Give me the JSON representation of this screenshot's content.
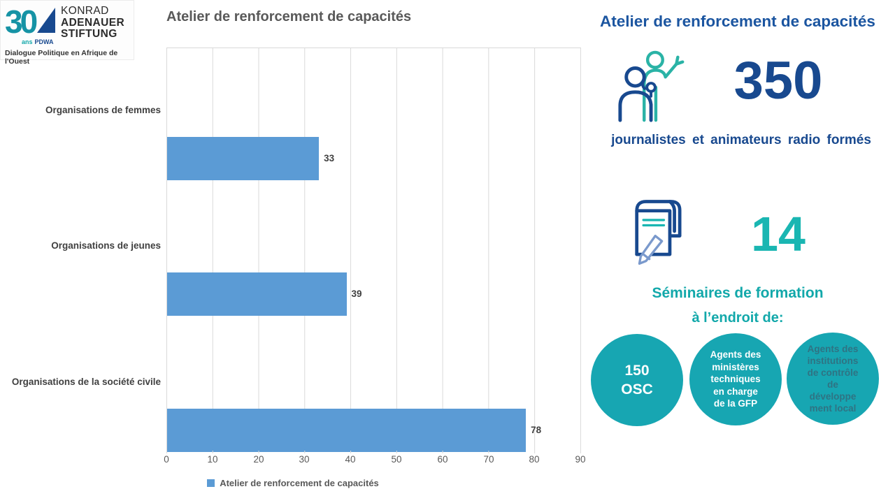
{
  "colors": {
    "navy": "#18498F",
    "navy-bright": "#1B55A0",
    "teal": "#12A8AA",
    "teal-num": "#1AB6B2",
    "teal-icon": "#2AB3A6",
    "circle-fill": "#17A6B2",
    "circle3-text": "#2F7383",
    "bar-blue": "#5B9BD5",
    "grid": "#D9D9D9",
    "title-gray": "#595959",
    "label-gray": "#404040",
    "logo-teal": "#1693A5",
    "pencil-blue": "#7A99CC"
  },
  "logo": {
    "mark_number": "30",
    "mark_sub_ans": "ans",
    "mark_sub_pdwa": "PDWA",
    "org_line1": "KONRAD",
    "org_line2": "ADENAUER",
    "org_line3": "STIFTUNG",
    "tagline": "Dialogue Politique en Afrique de l'Ouest"
  },
  "chart": {
    "title": "Atelier de renforcement de capacités",
    "legend_label": "Atelier de renforcement de capacités",
    "categories": [
      "Organisations de femmes",
      "Organisations de jeunes",
      "Organisations de la société civile"
    ],
    "value_labels": [
      "33",
      "39",
      "78"
    ],
    "xticks": [
      "0",
      "10",
      "20",
      "30",
      "40",
      "50",
      "60",
      "70",
      "80",
      "90"
    ]
  },
  "chart_data": {
    "type": "bar",
    "orientation": "horizontal",
    "title": "Atelier de renforcement de capacités",
    "categories": [
      "Organisations de femmes",
      "Organisations de jeunes",
      "Organisations de la société civile"
    ],
    "values": [
      33,
      39,
      78
    ],
    "xlim": [
      0,
      90
    ],
    "xticks": [
      0,
      10,
      20,
      30,
      40,
      50,
      60,
      70,
      80,
      90
    ],
    "bar_color": "#5B9BD5",
    "legend_entries": [
      "Atelier de renforcement de capacités"
    ],
    "legend_position": "bottom",
    "grid": "vertical-gridlines",
    "data_labels": true
  },
  "right_panel": {
    "title": "Atelier de renforcement de capacités",
    "stat1": {
      "value": "350",
      "caption": "journalistes  et animateurs radio  formés",
      "icon": "interview-icon"
    },
    "stat2": {
      "value": "14",
      "icon": "notebook-pencil-icon"
    },
    "subtitle_line1": "Séminaires de formation",
    "subtitle_line2": "à l’endroit de:",
    "circles": [
      {
        "lines": [
          "150",
          "OSC"
        ]
      },
      {
        "lines": [
          "Agents des",
          "ministères",
          "techniques",
          "en charge",
          "de la GFP"
        ]
      },
      {
        "lines": [
          "Agents des",
          "institutions",
          "de contrôle",
          "de",
          "développe",
          "ment local"
        ]
      }
    ]
  }
}
